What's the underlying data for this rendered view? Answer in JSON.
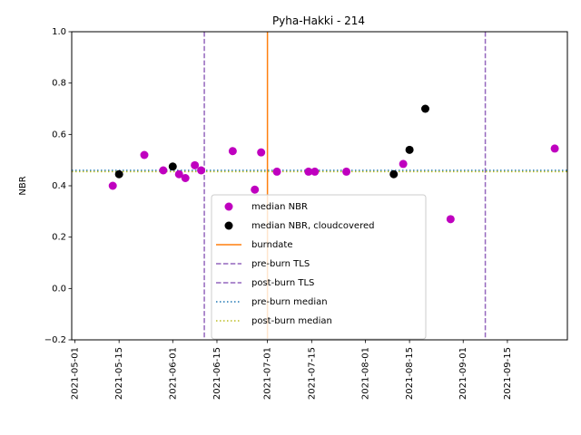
{
  "chart_data": {
    "type": "scatter",
    "title": "Pyha-Hakki - 214",
    "xlabel": "",
    "ylabel": "NBR",
    "xlim": [
      "2021-04-30",
      "2021-10-04"
    ],
    "ylim": [
      -0.2,
      1.0
    ],
    "grid": false,
    "x_ticks": [
      "2021-05-01",
      "2021-05-15",
      "2021-06-01",
      "2021-06-15",
      "2021-07-01",
      "2021-07-15",
      "2021-08-01",
      "2021-08-15",
      "2021-09-01",
      "2021-09-15"
    ],
    "y_ticks": [
      -0.2,
      0.0,
      0.2,
      0.4,
      0.6,
      0.8,
      1.0
    ],
    "y_tick_labels": [
      "−0.2",
      "0.0",
      "0.2",
      "0.4",
      "0.6",
      "0.8",
      "1.0"
    ],
    "legend_position": "lower-center",
    "series": [
      {
        "name": "median NBR",
        "kind": "points",
        "color": "#bf00bf",
        "points": [
          {
            "x": "2021-05-13",
            "y": 0.4
          },
          {
            "x": "2021-05-23",
            "y": 0.52
          },
          {
            "x": "2021-05-29",
            "y": 0.46
          },
          {
            "x": "2021-06-03",
            "y": 0.445
          },
          {
            "x": "2021-06-05",
            "y": 0.43
          },
          {
            "x": "2021-06-08",
            "y": 0.48
          },
          {
            "x": "2021-06-10",
            "y": 0.46
          },
          {
            "x": "2021-06-20",
            "y": 0.535
          },
          {
            "x": "2021-06-27",
            "y": 0.385
          },
          {
            "x": "2021-06-29",
            "y": 0.53
          },
          {
            "x": "2021-07-04",
            "y": 0.455
          },
          {
            "x": "2021-07-14",
            "y": 0.455
          },
          {
            "x": "2021-07-16",
            "y": 0.455
          },
          {
            "x": "2021-07-26",
            "y": 0.455
          },
          {
            "x": "2021-08-13",
            "y": 0.485
          },
          {
            "x": "2021-08-28",
            "y": 0.27
          },
          {
            "x": "2021-09-30",
            "y": 0.545
          }
        ]
      },
      {
        "name": "median NBR, cloudcovered",
        "kind": "points",
        "color": "#000000",
        "points": [
          {
            "x": "2021-05-15",
            "y": 0.445
          },
          {
            "x": "2021-06-01",
            "y": 0.475
          },
          {
            "x": "2021-08-10",
            "y": 0.445
          },
          {
            "x": "2021-08-15",
            "y": 0.54
          },
          {
            "x": "2021-08-20",
            "y": 0.7
          }
        ]
      },
      {
        "name": "burndate",
        "kind": "vline",
        "color": "#ff7f0e",
        "dash": "solid",
        "x": "2021-07-01"
      },
      {
        "name": "pre-burn TLS",
        "kind": "vline",
        "color": "#9467bd",
        "dash": "dashed",
        "x": "2021-06-11"
      },
      {
        "name": "post-burn TLS",
        "kind": "vline",
        "color": "#9467bd",
        "dash": "dashed",
        "x": "2021-09-08"
      },
      {
        "name": "pre-burn median",
        "kind": "hline",
        "color": "#1f77b4",
        "dash": "dotted",
        "y": 0.46
      },
      {
        "name": "post-burn median",
        "kind": "hline",
        "color": "#bcbd22",
        "dash": "dotted",
        "y": 0.455
      }
    ]
  }
}
